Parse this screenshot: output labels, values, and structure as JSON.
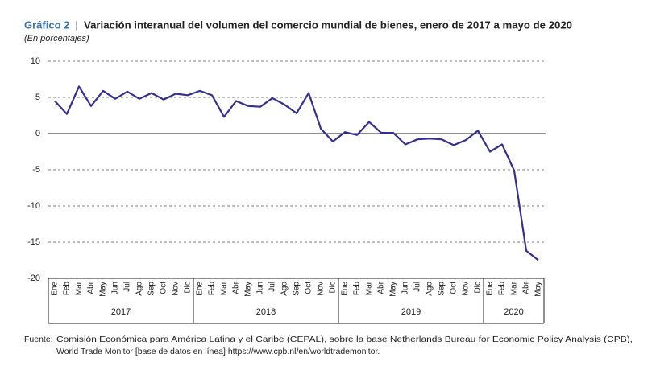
{
  "chart_data": {
    "type": "line",
    "figure_label": "Gráfico 2",
    "title": "Variación interanual del volumen del comercio mundial de bienes, enero de 2017 a mayo de 2020",
    "subtitle": "(En porcentajes)",
    "categories": [
      "Ene",
      "Feb",
      "Mar",
      "Abr",
      "May",
      "Jun",
      "Jul",
      "Ago",
      "Sep",
      "Oct",
      "Nov",
      "Dic",
      "Ene",
      "Feb",
      "Mar",
      "Abr",
      "May",
      "Jun",
      "Jul",
      "Ago",
      "Sep",
      "Oct",
      "Nov",
      "Dic",
      "Ene",
      "Feb",
      "Mar",
      "Abr",
      "May",
      "Jun",
      "Jul",
      "Ago",
      "Sep",
      "Oct",
      "Nov",
      "Dic",
      "Ene",
      "Feb",
      "Mar",
      "Abr",
      "May"
    ],
    "year_groups": [
      {
        "label": "2017",
        "months": 12
      },
      {
        "label": "2018",
        "months": 12
      },
      {
        "label": "2019",
        "months": 12
      },
      {
        "label": "2020",
        "months": 5
      }
    ],
    "series": [
      {
        "color": "#35308f",
        "values": [
          4.5,
          2.7,
          6.5,
          3.8,
          5.9,
          4.8,
          5.8,
          4.8,
          5.6,
          4.7,
          5.5,
          5.3,
          5.9,
          5.3,
          2.3,
          4.5,
          3.8,
          3.7,
          4.9,
          4.0,
          2.8,
          5.6,
          0.7,
          -1.1,
          0.2,
          -0.2,
          1.6,
          0.1,
          0.1,
          -1.5,
          -0.8,
          -0.7,
          -0.8,
          -1.6,
          -0.9,
          0.4,
          -2.5,
          -1.5,
          -5.1,
          -16.2,
          -17.5
        ]
      }
    ],
    "ylim": [
      -20,
      10
    ],
    "yticks": [
      -20,
      -15,
      -10,
      -5,
      0,
      5,
      10
    ],
    "grid": true,
    "source_label": "Fuente:",
    "source_lines": [
      "Comisión Económica para América Latina y el Caribe (CEPAL), sobre la base Netherlands Bureau for Economic Policy Analysis (CPB),",
      "World Trade Monitor [base de datos en línea] https://www.cpb.nl/en/worldtrademonitor."
    ]
  }
}
